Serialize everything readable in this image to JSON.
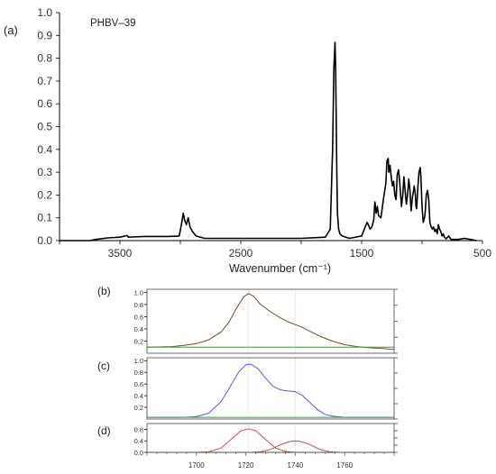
{
  "chart_data": [
    {
      "id": "a",
      "type": "line",
      "panel_label": "(a)",
      "title": "",
      "annotation": "PHBV–39",
      "xlabel": "Wavenumber (cm⁻¹)",
      "ylabel": "",
      "xlim": [
        4000,
        500
      ],
      "ylim": [
        0,
        1.0
      ],
      "xticks": [
        3500,
        2500,
        1500,
        500
      ],
      "yticks": [
        0.0,
        0.1,
        0.2,
        0.3,
        0.4,
        0.5,
        0.6,
        0.7,
        0.8,
        0.9,
        1.0
      ],
      "series": [
        {
          "color": "#000000",
          "x": [
            4000,
            3750,
            3700,
            3600,
            3500,
            3440,
            3430,
            3400,
            3300,
            3100,
            3010,
            2995,
            2975,
            2965,
            2950,
            2935,
            2920,
            2900,
            2870,
            2800,
            2500,
            2000,
            1800,
            1760,
            1740,
            1730,
            1720,
            1715,
            1705,
            1700,
            1690,
            1680,
            1660,
            1600,
            1500,
            1470,
            1455,
            1445,
            1430,
            1415,
            1400,
            1390,
            1380,
            1370,
            1360,
            1340,
            1320,
            1300,
            1290,
            1280,
            1275,
            1265,
            1255,
            1245,
            1235,
            1225,
            1215,
            1205,
            1195,
            1185,
            1180,
            1170,
            1160,
            1150,
            1140,
            1130,
            1120,
            1110,
            1100,
            1090,
            1080,
            1070,
            1065,
            1055,
            1050,
            1045,
            1035,
            1025,
            1015,
            1010,
            1000,
            990,
            980,
            975,
            965,
            955,
            945,
            935,
            925,
            915,
            905,
            895,
            885,
            875,
            865,
            855,
            845,
            835,
            825,
            815,
            800,
            780,
            760,
            700,
            650,
            600,
            550
          ],
          "y": [
            0.0,
            0.0,
            0.005,
            0.012,
            0.015,
            0.022,
            0.015,
            0.016,
            0.018,
            0.018,
            0.02,
            0.06,
            0.12,
            0.09,
            0.07,
            0.1,
            0.06,
            0.04,
            0.02,
            0.01,
            0.01,
            0.01,
            0.015,
            0.05,
            0.4,
            0.75,
            0.87,
            0.75,
            0.3,
            0.12,
            0.05,
            0.03,
            0.02,
            0.01,
            0.02,
            0.06,
            0.08,
            0.07,
            0.05,
            0.06,
            0.09,
            0.17,
            0.12,
            0.15,
            0.11,
            0.1,
            0.18,
            0.25,
            0.35,
            0.36,
            0.3,
            0.33,
            0.28,
            0.24,
            0.26,
            0.2,
            0.18,
            0.29,
            0.31,
            0.26,
            0.22,
            0.15,
            0.2,
            0.28,
            0.22,
            0.16,
            0.2,
            0.27,
            0.22,
            0.13,
            0.19,
            0.22,
            0.24,
            0.2,
            0.15,
            0.14,
            0.23,
            0.3,
            0.32,
            0.28,
            0.15,
            0.08,
            0.1,
            0.12,
            0.2,
            0.22,
            0.18,
            0.08,
            0.06,
            0.05,
            0.06,
            0.04,
            0.05,
            0.03,
            0.07,
            0.05,
            0.04,
            0.02,
            0.03,
            0.015,
            0.008,
            0.02,
            0.005,
            0.005,
            0.01,
            0.005,
            0.0
          ]
        }
      ]
    },
    {
      "id": "b",
      "type": "line",
      "panel_label": "(b)",
      "xlim": [
        1680,
        1780
      ],
      "ylim": [
        0,
        1.05
      ],
      "yticks": [
        0.2,
        0.4,
        0.6,
        0.8,
        1.0
      ],
      "guide_lines": [
        1721,
        1740
      ],
      "series": [
        {
          "color": "#7a4a1e",
          "x": [
            1680,
            1690,
            1695,
            1700,
            1705,
            1710,
            1713,
            1716,
            1719,
            1721,
            1723,
            1726,
            1730,
            1734,
            1738,
            1742,
            1746,
            1750,
            1755,
            1760,
            1765,
            1770,
            1775,
            1780
          ],
          "y": [
            0.1,
            0.11,
            0.13,
            0.16,
            0.22,
            0.35,
            0.5,
            0.72,
            0.92,
            0.98,
            0.94,
            0.8,
            0.68,
            0.58,
            0.5,
            0.44,
            0.36,
            0.28,
            0.2,
            0.14,
            0.11,
            0.09,
            0.08,
            0.06
          ]
        },
        {
          "color": "#3c9a3c",
          "x": [
            1680,
            1780
          ],
          "y": [
            0.1,
            0.1
          ]
        }
      ]
    },
    {
      "id": "c",
      "type": "line",
      "panel_label": "(c)",
      "xlim": [
        1680,
        1780
      ],
      "ylim": [
        0,
        1.05
      ],
      "yticks": [
        0.2,
        0.4,
        0.6,
        0.8,
        1.0
      ],
      "guide_lines": [
        1721,
        1740
      ],
      "series": [
        {
          "color": "#5a5adc",
          "x": [
            1680,
            1695,
            1700,
            1705,
            1710,
            1714,
            1717,
            1720,
            1722,
            1725,
            1728,
            1731,
            1734,
            1737,
            1740,
            1743,
            1746,
            1749,
            1752,
            1755,
            1760,
            1765,
            1780
          ],
          "y": [
            0.03,
            0.03,
            0.04,
            0.1,
            0.3,
            0.58,
            0.8,
            0.93,
            0.94,
            0.86,
            0.7,
            0.56,
            0.5,
            0.48,
            0.47,
            0.4,
            0.28,
            0.16,
            0.08,
            0.05,
            0.03,
            0.03,
            0.03
          ]
        },
        {
          "color": "#3c9a3c",
          "x": [
            1680,
            1780
          ],
          "y": [
            0.03,
            0.03
          ]
        }
      ]
    },
    {
      "id": "d",
      "type": "line",
      "panel_label": "(d)",
      "xlim": [
        1680,
        1780
      ],
      "ylim": [
        0,
        1.0
      ],
      "yticks": [
        0.0,
        0.4,
        0.8
      ],
      "xticks": [
        1700,
        1720,
        1740,
        1760
      ],
      "guide_lines": [
        1721,
        1740
      ],
      "series": [
        {
          "color": "#d24b4b",
          "x": [
            1700,
            1705,
            1710,
            1714,
            1718,
            1721,
            1724,
            1728,
            1732,
            1736,
            1740,
            1744
          ],
          "y": [
            0.0,
            0.02,
            0.15,
            0.45,
            0.75,
            0.82,
            0.75,
            0.45,
            0.15,
            0.03,
            0.0,
            0.0
          ]
        },
        {
          "color": "#d24b4b",
          "x": [
            1722,
            1726,
            1730,
            1734,
            1738,
            1740,
            1742,
            1746,
            1750,
            1754,
            1758
          ],
          "y": [
            0.0,
            0.02,
            0.1,
            0.27,
            0.38,
            0.4,
            0.38,
            0.27,
            0.1,
            0.02,
            0.0
          ]
        },
        {
          "color": "#3c9a3c",
          "x": [
            1680,
            1780
          ],
          "y": [
            0.0,
            0.0
          ]
        }
      ]
    }
  ]
}
